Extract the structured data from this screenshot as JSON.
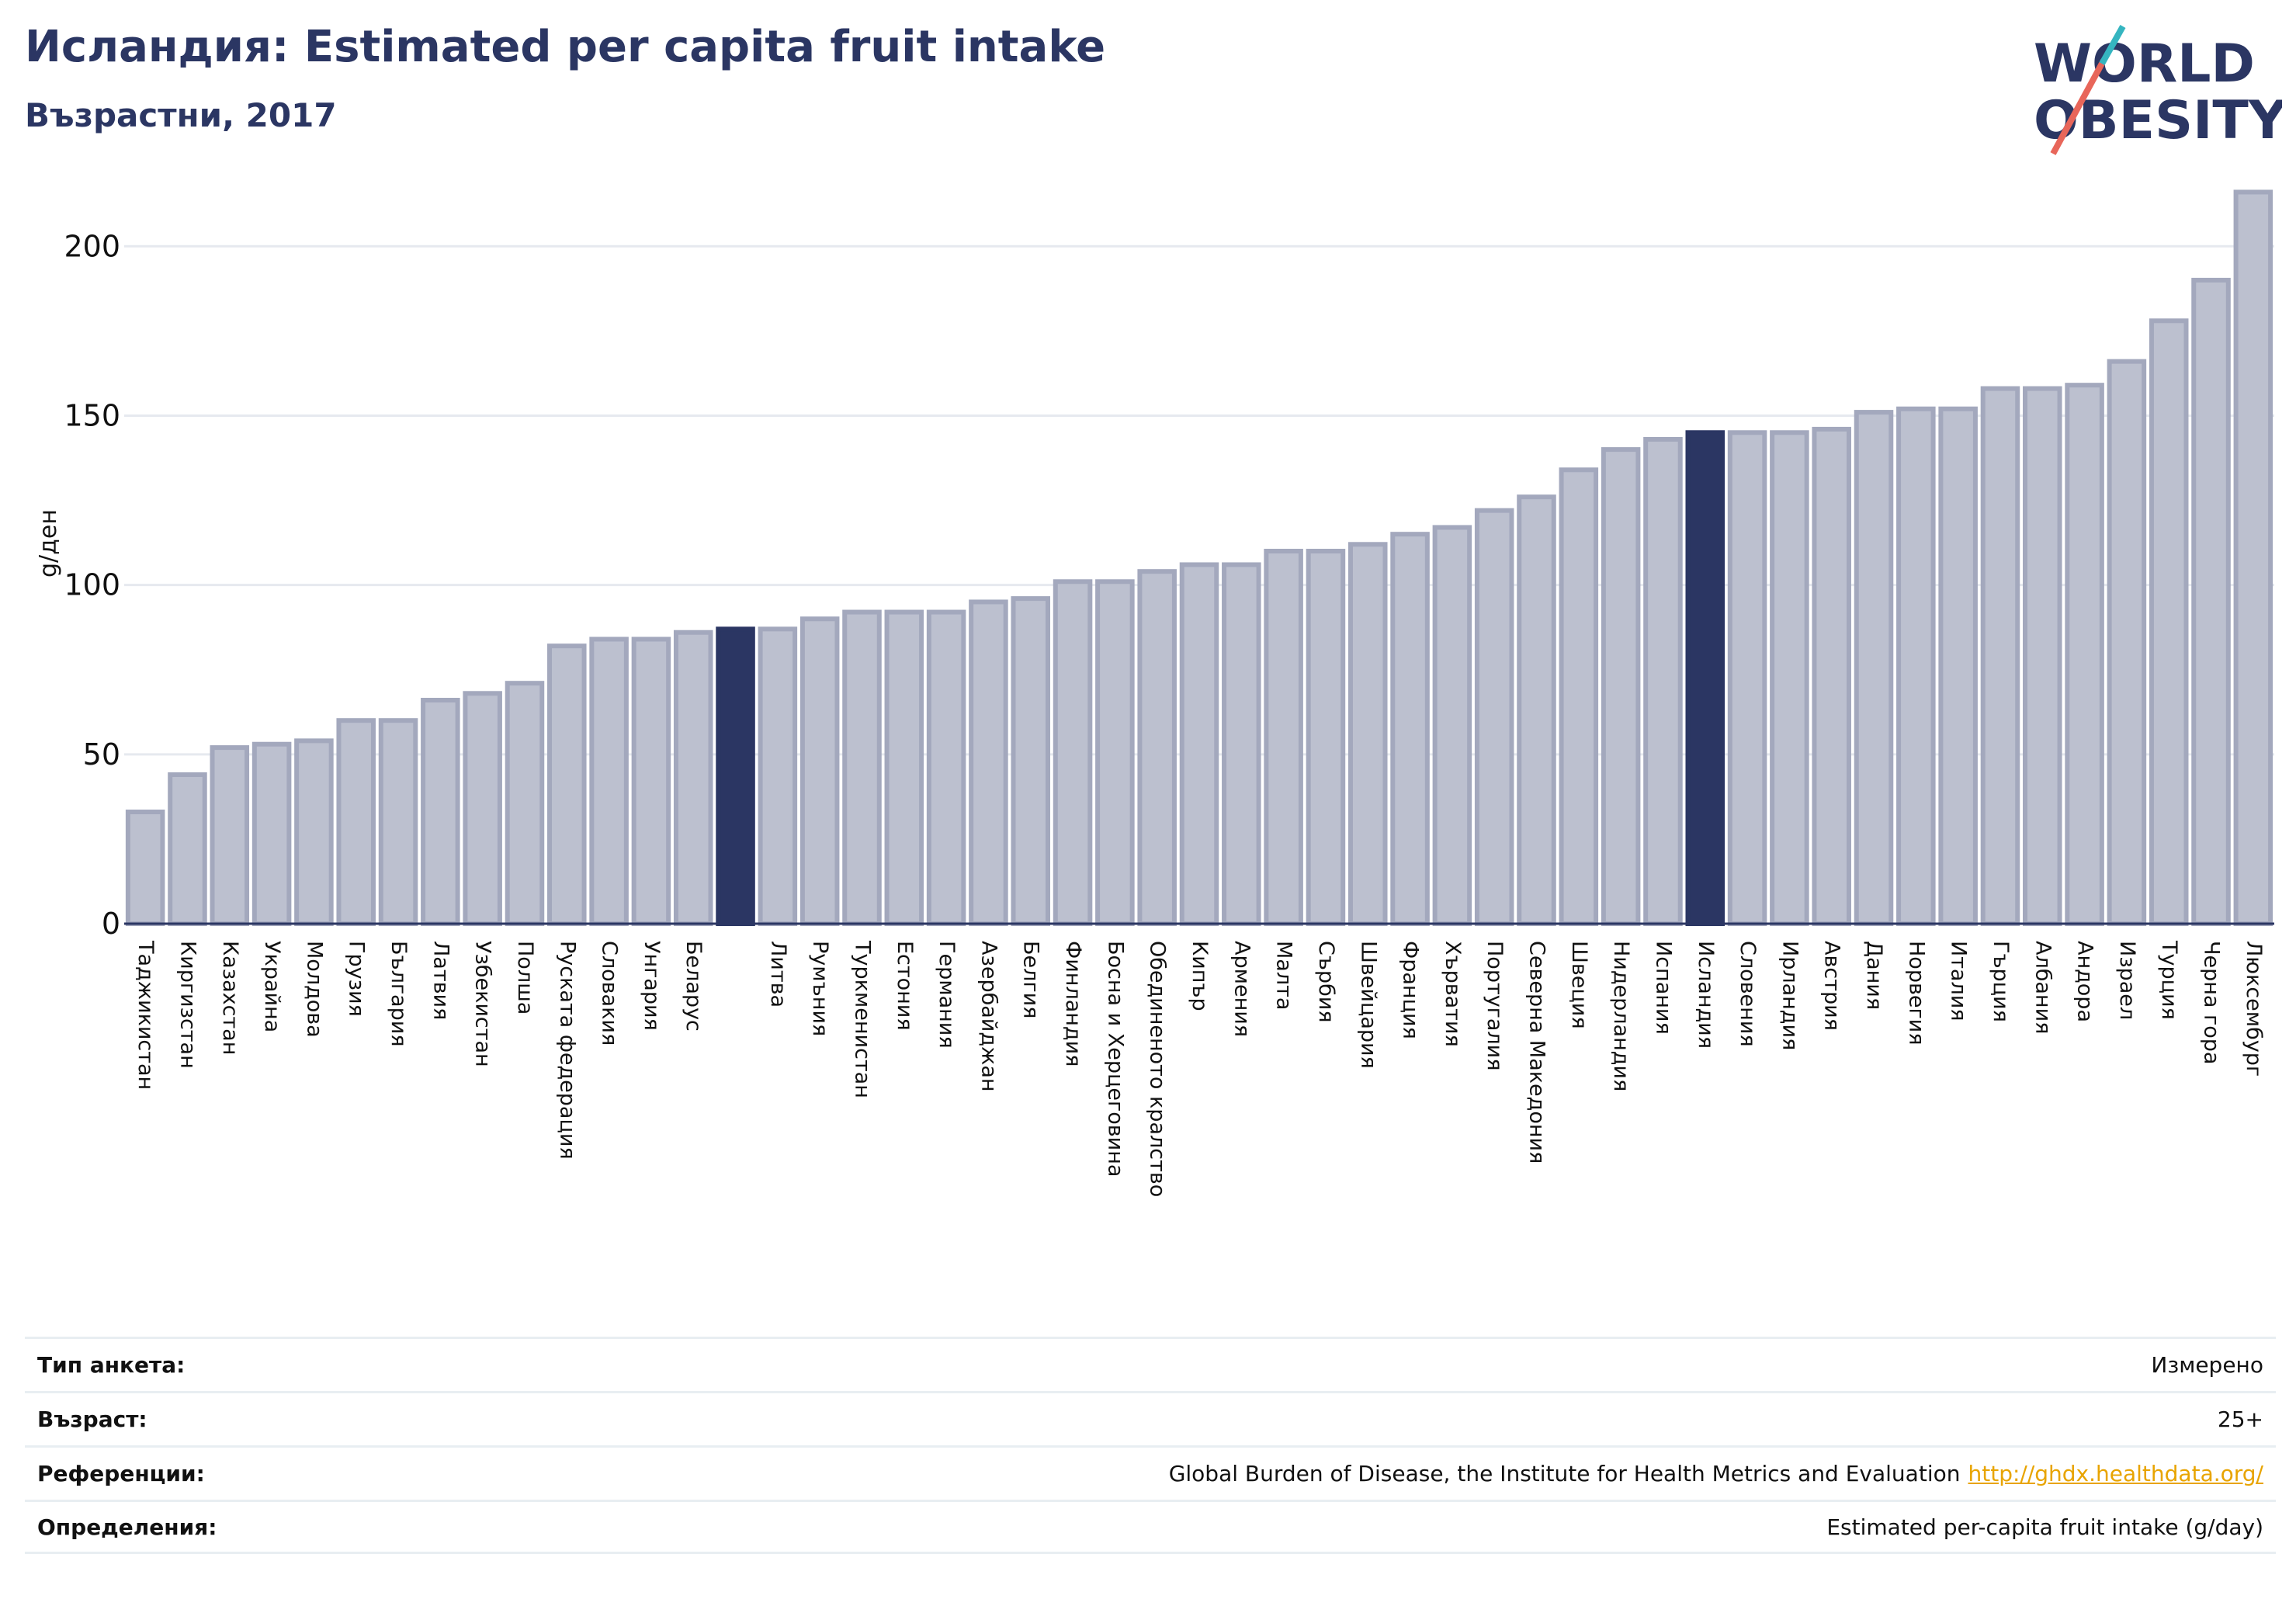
{
  "header": {
    "title": "Исландия: Estimated per capita fruit intake",
    "subtitle": "Възрастни, 2017"
  },
  "logo": {
    "line1": "WORLD",
    "line2": "OBESITY"
  },
  "colors": {
    "highlight": "#2b3663",
    "bar_fill": "#bcc0cf",
    "bar_stroke": "#a3a8bd",
    "grid": "#e6e9ef",
    "logo_text": "#2b3663",
    "logo_slash_red": "#e8665a",
    "logo_slash_teal": "#35b5c0",
    "link": "#e8a400"
  },
  "chart_data": {
    "type": "bar",
    "ylabel": "g/ден",
    "ylim": [
      0,
      220
    ],
    "yticks": [
      0,
      50,
      100,
      150,
      200
    ],
    "grid": true,
    "highlighted": [
      "Исландия"
    ],
    "categories": [
      "Таджикистан",
      "Киргизстан",
      "Казахстан",
      "Украйна",
      "Молдова",
      "Грузия",
      "България",
      "Латвия",
      "Узбекистан",
      "Полша",
      "Руската федерация",
      "Словакия",
      "Унгария",
      "Беларус",
      "",
      "Литва",
      "Румъния",
      "Туркменистан",
      "Естония",
      "Германия",
      "Азербайджан",
      "Белгия",
      "Финландия",
      "Босна и Херцеговина",
      "Обединеното кралство",
      "Кипър",
      "Армения",
      "Малта",
      "Сърбия",
      "Швейцария",
      "Франция",
      "Хърватия",
      "Португалия",
      "Северна Македония",
      "Швеция",
      "Нидерландия",
      "Испания",
      "Исландия",
      "Словения",
      "Ирландия",
      "Австрия",
      "Дания",
      "Норвегия",
      "Италия",
      "Гърция",
      "Албания",
      "Андора",
      "Израел",
      "Турция",
      "Черна гора",
      "Люксембург"
    ],
    "values": [
      33,
      44,
      52,
      53,
      54,
      60,
      60,
      66,
      68,
      71,
      82,
      84,
      84,
      86,
      87,
      87,
      90,
      92,
      92,
      92,
      95,
      96,
      101,
      101,
      104,
      106,
      106,
      110,
      110,
      112,
      115,
      117,
      122,
      126,
      134,
      140,
      143,
      145,
      145,
      145,
      146,
      151,
      152,
      152,
      158,
      158,
      159,
      166,
      178,
      190,
      216
    ]
  },
  "meta": {
    "survey_label": "Тип анкета:",
    "survey_value": "Измерено",
    "age_label": "Възраст:",
    "age_value": "25+",
    "ref_label": "Референции:",
    "ref_value": "Global Burden of Disease, the Institute for Health Metrics and Evaluation",
    "ref_link": "http://ghdx.healthdata.org/",
    "def_label": "Определения:",
    "def_value": "Estimated per-capita fruit intake (g/day)"
  }
}
